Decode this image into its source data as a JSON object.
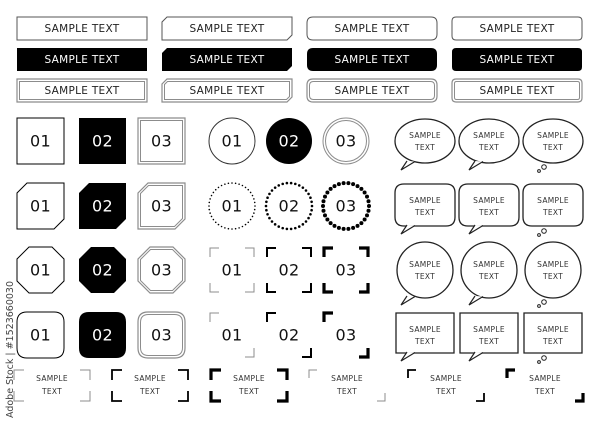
{
  "banners": {
    "rows": [
      [
        "SAMPLE TEXT",
        "SAMPLE TEXT",
        "SAMPLE TEXT",
        "SAMPLE TEXT"
      ],
      [
        "SAMPLE TEXT",
        "SAMPLE TEXT",
        "SAMPLE TEXT",
        "SAMPLE TEXT"
      ],
      [
        "SAMPLE TEXT",
        "SAMPLE TEXT",
        "SAMPLE TEXT",
        "SAMPLE TEXT"
      ]
    ],
    "column_shapes": [
      "rectangle",
      "cut-corner",
      "rounded",
      "rounded-small"
    ],
    "row_styles": [
      "outline",
      "filled",
      "double-outline"
    ]
  },
  "square_badges": {
    "rows": [
      [
        "01",
        "02",
        "03"
      ],
      [
        "01",
        "02",
        "03"
      ],
      [
        "01",
        "02",
        "03"
      ],
      [
        "01",
        "02",
        "03"
      ]
    ],
    "row_shapes": [
      "square",
      "cut-corner",
      "octagon",
      "rounded-square"
    ],
    "column_styles": [
      "outline",
      "filled",
      "double-outline"
    ]
  },
  "circle_badges": {
    "rows": [
      [
        "01",
        "02",
        "03"
      ],
      [
        "01",
        "02",
        "03"
      ],
      [
        "01",
        "02",
        "03"
      ],
      [
        "01",
        "02",
        "03"
      ]
    ],
    "row_shapes": [
      "circle",
      "dotted-circle",
      "corner-brackets",
      "two-corner-brackets"
    ]
  },
  "speech_bubbles": {
    "rows": [
      [
        {
          "line1": "SAMPLE",
          "line2": "TEXT"
        },
        {
          "line1": "SAMPLE",
          "line2": "TEXT"
        },
        {
          "line1": "SAMPLE",
          "line2": "TEXT"
        }
      ],
      [
        {
          "line1": "SAMPLE",
          "line2": "TEXT"
        },
        {
          "line1": "SAMPLE",
          "line2": "TEXT"
        },
        {
          "line1": "SAMPLE",
          "line2": "TEXT"
        }
      ],
      [
        {
          "line1": "SAMPLE",
          "line2": "TEXT"
        },
        {
          "line1": "SAMPLE",
          "line2": "TEXT"
        },
        {
          "line1": "SAMPLE",
          "line2": "TEXT"
        }
      ],
      [
        {
          "line1": "SAMPLE",
          "line2": "TEXT"
        },
        {
          "line1": "SAMPLE",
          "line2": "TEXT"
        },
        {
          "line1": "SAMPLE",
          "line2": "TEXT"
        }
      ]
    ],
    "row_shapes": [
      "ellipse",
      "rounded-rectangle",
      "circle",
      "rectangle"
    ],
    "column_tails": [
      "speech-tail",
      "speech-tail",
      "thought-dots"
    ]
  },
  "bracket_labels": [
    {
      "line1": "SAMPLE",
      "line2": "TEXT"
    },
    {
      "line1": "SAMPLE",
      "line2": "TEXT"
    },
    {
      "line1": "SAMPLE",
      "line2": "TEXT"
    },
    {
      "line1": "SAMPLE",
      "line2": "TEXT"
    },
    {
      "line1": "SAMPLE",
      "line2": "TEXT"
    },
    {
      "line1": "SAMPLE",
      "line2": "TEXT"
    }
  ],
  "watermark": "Adobe Stock | #1523660030",
  "colors": {
    "ink": "#000000",
    "outline_gray": "#8c8c8c",
    "background": "#ffffff"
  }
}
